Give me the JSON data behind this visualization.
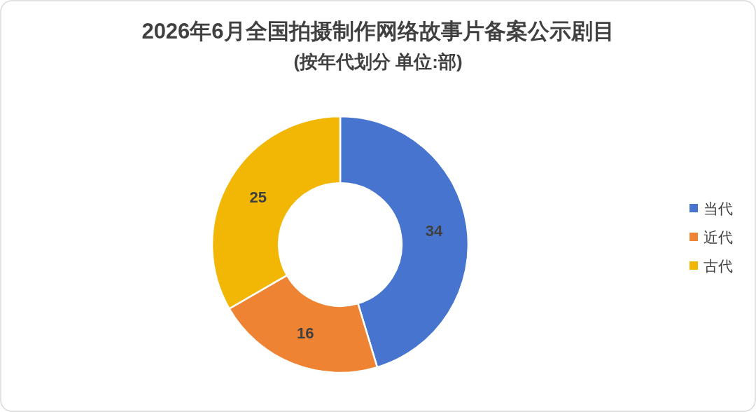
{
  "chart_data": {
    "type": "donut",
    "title": "2026年6月全国拍摄制作网络故事片备案公示剧目",
    "subtitle": "(按年代划分 单位:部)",
    "categories": [
      "当代",
      "近代",
      "古代"
    ],
    "values": [
      34,
      16,
      25
    ],
    "colors": [
      "#4674ce",
      "#ee8433",
      "#f2b705"
    ],
    "data_labels": true,
    "legend": "right"
  }
}
